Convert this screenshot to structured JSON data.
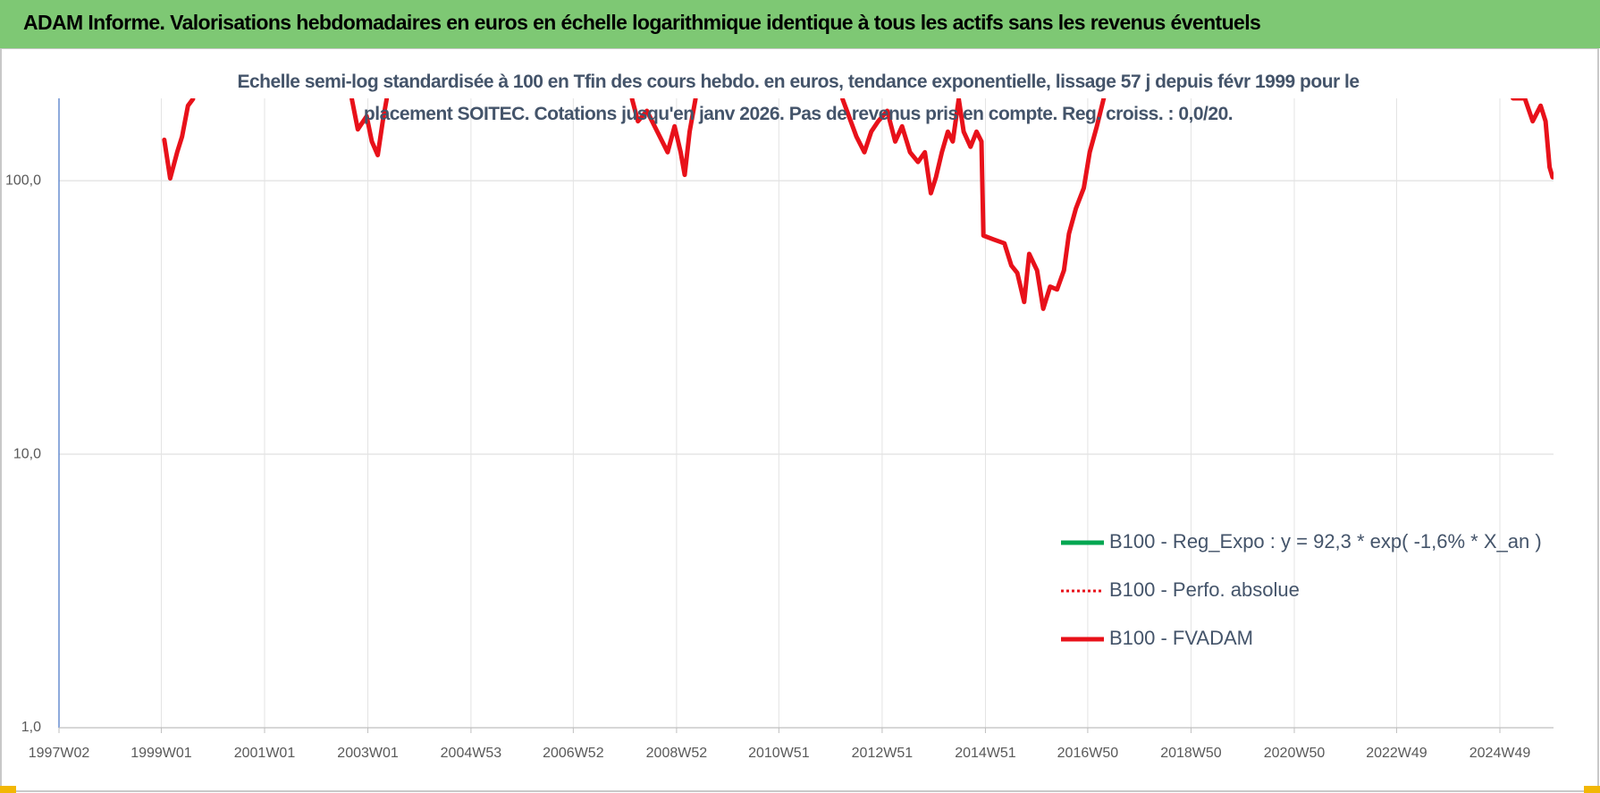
{
  "header": {
    "title": "ADAM Informe. Valorisations hebdomadaires en euros en échelle logarithmique identique à tous les actifs sans les revenus éventuels"
  },
  "chart_data": {
    "type": "line",
    "title": "Echelle semi-log standardisée à 100 en Tfin des cours hebdo. en euros, tendance exponentielle, lissage 57 j depuis févr 1999 pour le placement SOITEC. Cotations jusqu'en janv 2026. Pas de revenus pris en compte. Reg. croiss. : 0,0/20.",
    "log_scale": true,
    "grid": true,
    "legend_position": "bottom-right",
    "xlim": [
      "1997W02",
      "2025W51"
    ],
    "xticks": [
      "1997W02",
      "1999W01",
      "2001W01",
      "2003W01",
      "2004W53",
      "2006W52",
      "2008W52",
      "2010W51",
      "2012W51",
      "2014W51",
      "2016W50",
      "2018W50",
      "2020W50",
      "2022W49",
      "2024W49"
    ],
    "ylim": [
      1,
      200
    ],
    "yticks": [
      {
        "value": 1,
        "label": "1,0"
      },
      {
        "value": 10,
        "label": "10,0"
      },
      {
        "value": 100,
        "label": "100,0"
      }
    ],
    "x": [
      "1999W04",
      "1999W10",
      "1999W17",
      "1999W22",
      "1999W28",
      "1999W33",
      "2001W01",
      "2002W37",
      "2002W43",
      "2002W52",
      "2003W05",
      "2003W11",
      "2003W16",
      "2003W20",
      "2005W30",
      "2008W07",
      "2008W13",
      "2008W22",
      "2008W43",
      "2008W50",
      "2009W04",
      "2009W08",
      "2009W13",
      "2009W19",
      "2010W51",
      "2012W11",
      "2012W25",
      "2012W33",
      "2012W40",
      "2012W47",
      "2013W04",
      "2013W12",
      "2013W19",
      "2013W27",
      "2013W35",
      "2013W42",
      "2013W48",
      "2014W01",
      "2014W07",
      "2014W13",
      "2014W18",
      "2014W24",
      "2014W29",
      "2014W36",
      "2014W42",
      "2014W47",
      "2014W49",
      "2015W07",
      "2015W18",
      "2015W25",
      "2015W31",
      "2015W38",
      "2015W43",
      "2015W51",
      "2016W05",
      "2016W12",
      "2016W19",
      "2016W26",
      "2016W31",
      "2016W38",
      "2016W46",
      "2016W52",
      "2017W07",
      "2017W14",
      "2020W50",
      "2025W10",
      "2025W22",
      "2025W30",
      "2025W38",
      "2025W43",
      "2025W47",
      "2025W50"
    ],
    "series": [
      {
        "name": "B100 - Reg_Expo : y = 92,3 * exp( -1,6% *  X_an )",
        "color": "#00a651",
        "style": "solid",
        "width": 5,
        "values": [
          null,
          null,
          null,
          null,
          null,
          null,
          null,
          null,
          null,
          null,
          null,
          null,
          null,
          null,
          null,
          null,
          null,
          null,
          null,
          null,
          null,
          null,
          null,
          null,
          null,
          null,
          null,
          null,
          null,
          null,
          null,
          null,
          null,
          null,
          null,
          null,
          null,
          null,
          null,
          null,
          null,
          null,
          null,
          null,
          null,
          null,
          null,
          null,
          null,
          null,
          null,
          null,
          null,
          null,
          null,
          null,
          null,
          null,
          null,
          null,
          null,
          null,
          null,
          null,
          null,
          null,
          null,
          null,
          null,
          null,
          null,
          null
        ]
      },
      {
        "name": "B100 - Perfo. absolue",
        "color": "#e8111a",
        "style": "dotted",
        "width": 3,
        "values": [
          null,
          null,
          null,
          null,
          null,
          null,
          null,
          null,
          null,
          null,
          null,
          null,
          null,
          null,
          null,
          null,
          null,
          null,
          null,
          null,
          null,
          null,
          null,
          null,
          null,
          null,
          null,
          null,
          null,
          null,
          null,
          null,
          null,
          null,
          null,
          null,
          null,
          null,
          null,
          null,
          null,
          null,
          null,
          null,
          null,
          null,
          null,
          null,
          null,
          null,
          null,
          null,
          null,
          null,
          null,
          null,
          null,
          null,
          null,
          null,
          null,
          null,
          null,
          null,
          null,
          null,
          null,
          null,
          null,
          null,
          null,
          null
        ]
      },
      {
        "name": "B100 - FVADAM",
        "color": "#e8111a",
        "style": "solid",
        "width": 5,
        "values": [
          141,
          102,
          127,
          145,
          188,
          199,
          null,
          199,
          154,
          172,
          139,
          124,
          165,
          199,
          null,
          199,
          165,
          180,
          127,
          158,
          127,
          105,
          151,
          199,
          null,
          199,
          145,
          127,
          151,
          165,
          180,
          139,
          158,
          127,
          117,
          127,
          90,
          103,
          127,
          151,
          139,
          199,
          151,
          133,
          151,
          139,
          63,
          61,
          59,
          49,
          46,
          36,
          54,
          47,
          34,
          41,
          40,
          47,
          64,
          79,
          94,
          127,
          158,
          200,
          null,
          200,
          200,
          165,
          188,
          165,
          112,
          103
        ]
      }
    ]
  }
}
